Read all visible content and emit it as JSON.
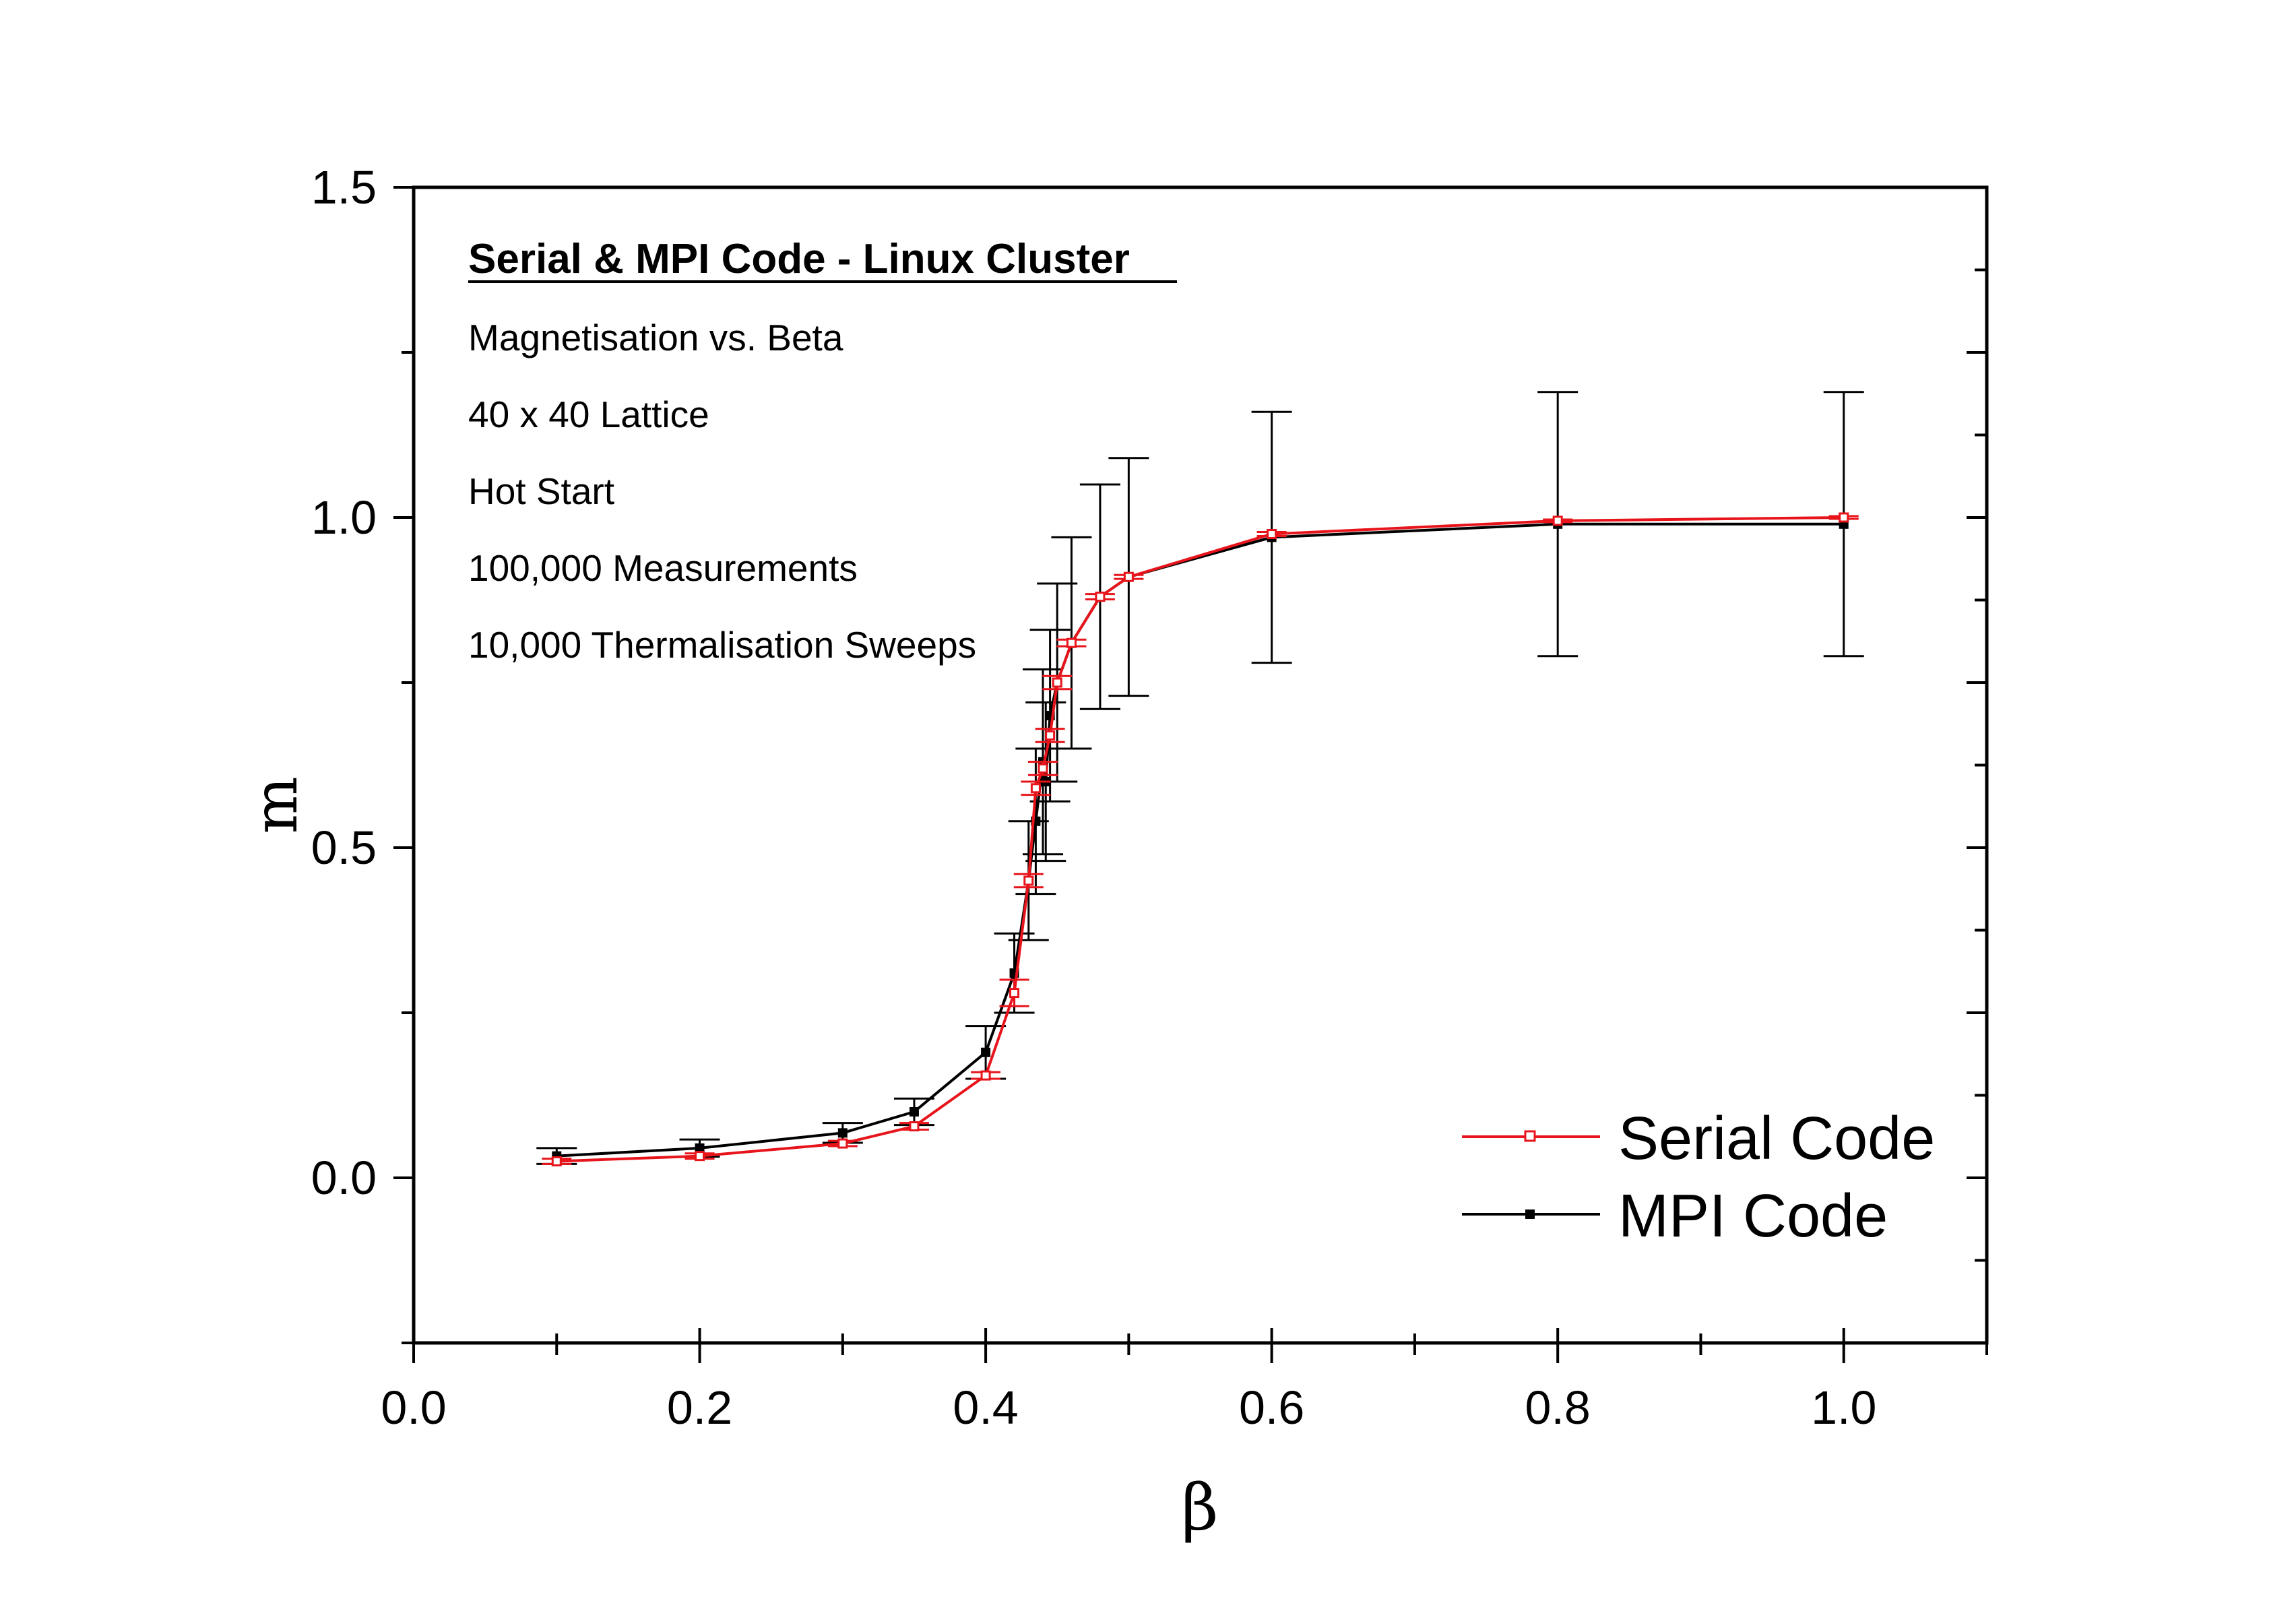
{
  "chart_data": {
    "type": "line",
    "xlabel": "β",
    "ylabel": "m",
    "xlim": [
      0.0,
      1.1
    ],
    "ylim": [
      -0.25,
      1.5
    ],
    "x_ticks": [
      "0.0",
      "0.2",
      "0.4",
      "0.6",
      "0.8",
      "1.0"
    ],
    "y_ticks": [
      "0.0",
      "0.5",
      "1.0",
      "1.5"
    ],
    "grid": false,
    "legend_position": "bottom-right",
    "annotations": {
      "title": "Serial & MPI Code - Linux Cluster",
      "lines": [
        "Magnetisation vs. Beta",
        "40 x 40 Lattice",
        "Hot Start",
        "100,000 Measurements",
        "10,000 Thermalisation Sweeps"
      ]
    },
    "series": [
      {
        "name": "Serial Code",
        "color": "#e8141b",
        "marker": "open-square",
        "x": [
          0.1,
          0.2,
          0.3,
          0.35,
          0.4,
          0.42,
          0.43,
          0.435,
          0.44,
          0.445,
          0.45,
          0.46,
          0.48,
          0.5,
          0.6,
          0.8,
          1.0
        ],
        "y": [
          0.025,
          0.033,
          0.052,
          0.078,
          0.155,
          0.28,
          0.45,
          0.59,
          0.62,
          0.67,
          0.75,
          0.81,
          0.88,
          0.91,
          0.975,
          0.995,
          1.0
        ],
        "err": [
          0.004,
          0.004,
          0.004,
          0.005,
          0.005,
          0.02,
          0.01,
          0.01,
          0.01,
          0.01,
          0.01,
          0.005,
          0.004,
          0.003,
          0.003,
          0.002,
          0.002
        ]
      },
      {
        "name": "MPI Code",
        "color": "#000000",
        "marker": "filled-square",
        "x": [
          0.1,
          0.2,
          0.3,
          0.35,
          0.4,
          0.42,
          0.43,
          0.435,
          0.44,
          0.442,
          0.445,
          0.45,
          0.46,
          0.48,
          0.5,
          0.6,
          0.8,
          1.0
        ],
        "y": [
          0.033,
          0.045,
          0.068,
          0.1,
          0.19,
          0.31,
          0.45,
          0.54,
          0.63,
          0.6,
          0.7,
          0.75,
          0.81,
          0.88,
          0.91,
          0.97,
          0.99,
          0.99
        ],
        "err": [
          0.012,
          0.013,
          0.015,
          0.02,
          0.04,
          0.06,
          0.09,
          0.11,
          0.14,
          0.12,
          0.13,
          0.15,
          0.16,
          0.17,
          0.18,
          0.19,
          0.2,
          0.2
        ]
      }
    ]
  }
}
